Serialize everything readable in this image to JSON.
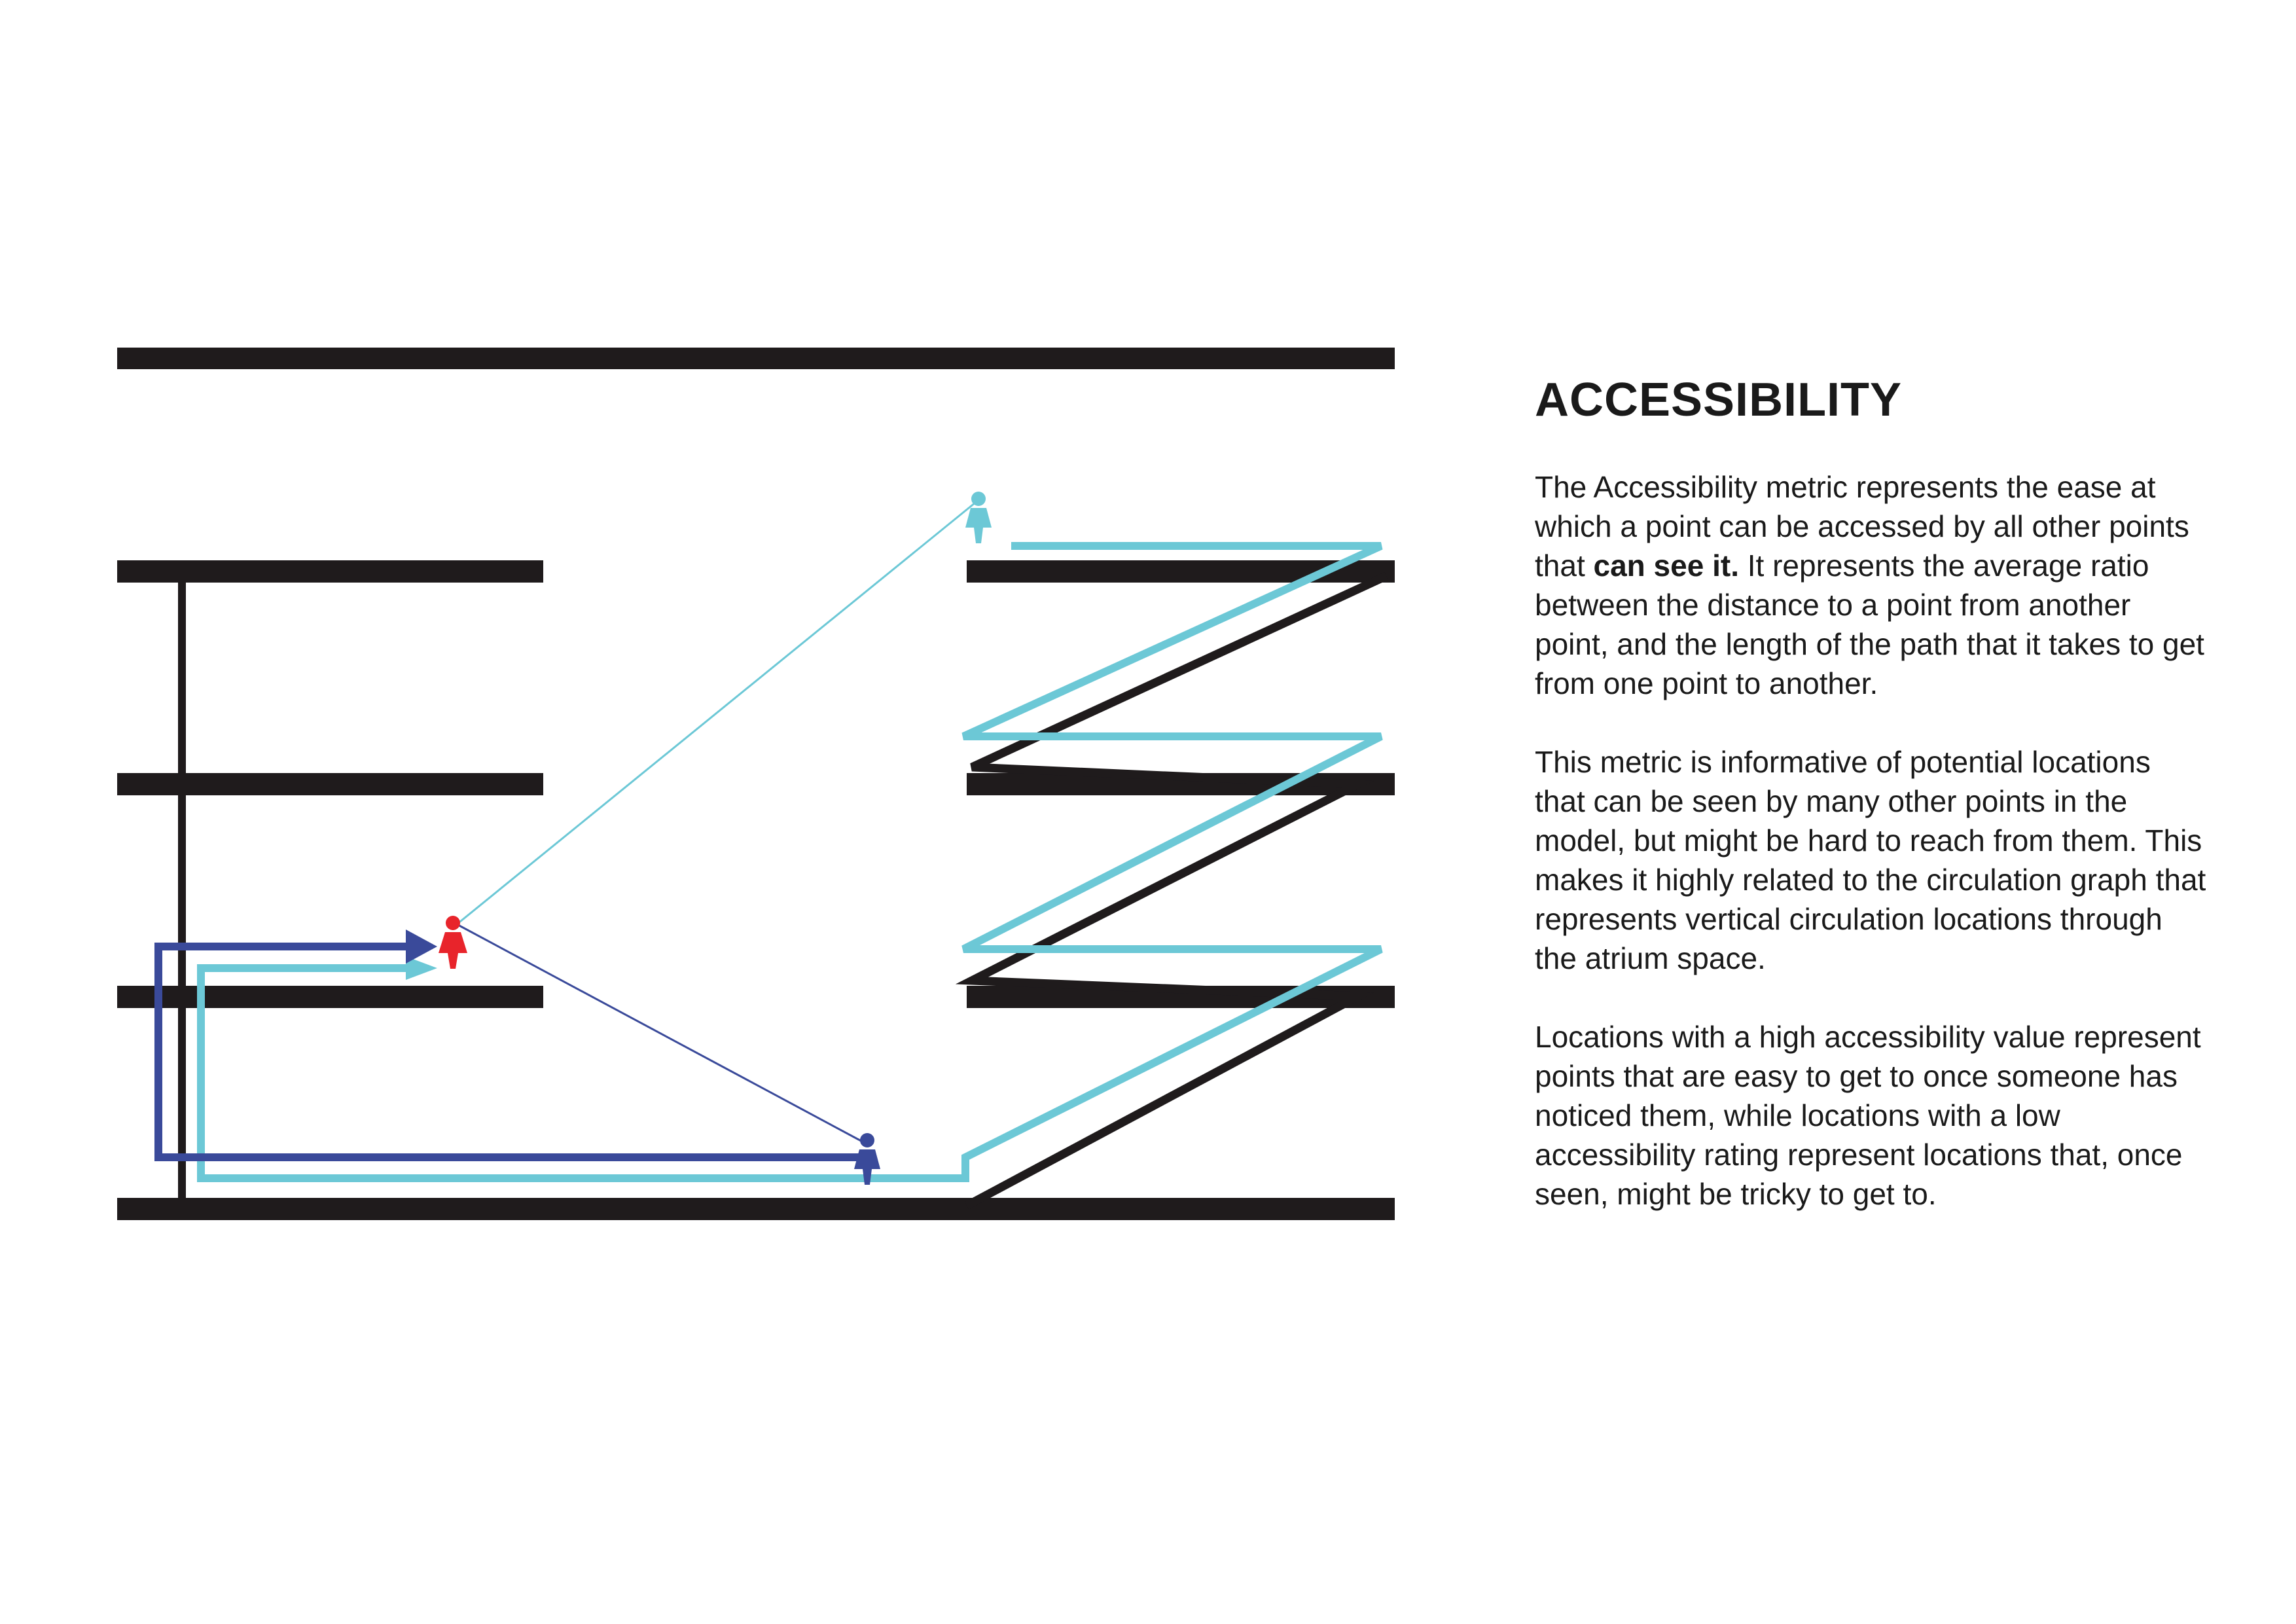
{
  "title": "ACCESSIBILITY",
  "paragraphs": {
    "p1_before": "The Accessibility metric represents the ease at which a point can be accessed by all other points that ",
    "p1_bold": "can see it.",
    "p1_after": " It represents the average ratio between the distance to a point from another point, and the length of the path that it takes to get from one point to another.",
    "p2": "This metric is informative of potential locations that can be seen by many other points in the model, but might be hard to reach from them. This makes it highly related to the circulation graph that represents vertical circulation locations through the atrium space.",
    "p3": "Locations with a high accessibility value represent points that are easy to get to once someone has noticed them, while locations with a low accessibility rating represent locations that, once seen, might be tricky to get to."
  },
  "colors": {
    "floor": "#1f1b1c",
    "light_path": "#6cc8d6",
    "dark_path": "#3a4a9a",
    "focus_person": "#e8242b"
  }
}
